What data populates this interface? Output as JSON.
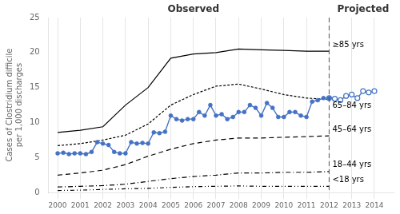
{
  "chart_data": {
    "type": "line",
    "y_label": "Cases of Clostridium difficile\nper 1,000 discharges",
    "xlim": [
      1999.6,
      2014.85
    ],
    "xticks": [
      2000,
      2001,
      2002,
      2003,
      2004,
      2005,
      2006,
      2007,
      2008,
      2009,
      2010,
      2011,
      2012,
      2013,
      2014
    ],
    "ylim": [
      0,
      25
    ],
    "yticks": [
      0,
      5,
      10,
      15,
      20,
      25
    ],
    "grid": "x",
    "annotations": [
      {
        "text": "Observed",
        "x": 2006.0
      },
      {
        "text": "Projected",
        "x": 2013.5
      }
    ],
    "vlines": [
      {
        "x": 2012,
        "color": "#555555",
        "line_style": "dashed"
      }
    ],
    "series": [
      {
        "name": "≥85 yrs",
        "color": "#000000",
        "line_style": "solid",
        "marker": "none",
        "x": [
          2000,
          2001,
          2002,
          2003,
          2004,
          2005,
          2006,
          2007,
          2008,
          2009,
          2010,
          2011,
          2012
        ],
        "values": [
          8.6,
          8.9,
          9.4,
          12.5,
          15.0,
          19.2,
          19.8,
          20.0,
          20.5,
          20.4,
          20.3,
          20.2,
          20.2
        ]
      },
      {
        "name": "65–84 yrs",
        "color": "#000000",
        "line_style": "short_dash",
        "marker": "none",
        "x": [
          2000,
          2001,
          2002,
          2003,
          2004,
          2005,
          2006,
          2007,
          2008,
          2009,
          2010,
          2011,
          2012
        ],
        "values": [
          6.7,
          7.0,
          7.5,
          8.2,
          9.8,
          12.5,
          14.0,
          15.2,
          15.5,
          14.8,
          14.0,
          13.5,
          13.3
        ]
      },
      {
        "name": "45–64 yrs",
        "color": "#000000",
        "line_style": "dashed",
        "marker": "none",
        "x": [
          2000,
          2001,
          2002,
          2003,
          2004,
          2005,
          2006,
          2007,
          2008,
          2009,
          2010,
          2011,
          2012
        ],
        "values": [
          2.5,
          2.8,
          3.2,
          4.0,
          5.2,
          6.2,
          7.0,
          7.5,
          7.8,
          7.8,
          7.9,
          8.0,
          8.1
        ]
      },
      {
        "name": "18–44 yrs",
        "color": "#000000",
        "line_style": "dashdot",
        "marker": "none",
        "x": [
          2000,
          2001,
          2002,
          2003,
          2004,
          2005,
          2006,
          2007,
          2008,
          2009,
          2010,
          2011,
          2012
        ],
        "values": [
          0.8,
          0.9,
          1.0,
          1.2,
          1.6,
          2.0,
          2.3,
          2.5,
          2.8,
          2.8,
          2.9,
          2.9,
          3.0
        ]
      },
      {
        "name": "<18 yrs",
        "color": "#000000",
        "line_style": "dashdotdot",
        "marker": "none",
        "x": [
          2000,
          2001,
          2002,
          2003,
          2004,
          2005,
          2006,
          2007,
          2008,
          2009,
          2010,
          2011,
          2012
        ],
        "values": [
          0.3,
          0.35,
          0.45,
          0.55,
          0.6,
          0.75,
          0.85,
          0.9,
          0.95,
          0.9,
          0.9,
          0.9,
          0.9
        ]
      },
      {
        "color": "#4472C4",
        "line_style": "solid",
        "marker": "circle",
        "x": [
          2000,
          2000.25,
          2000.5,
          2000.75,
          2001,
          2001.25,
          2001.5,
          2001.75,
          2002,
          2002.25,
          2002.5,
          2002.75,
          2003,
          2003.25,
          2003.5,
          2003.75,
          2004,
          2004.25,
          2004.5,
          2004.75,
          2005,
          2005.25,
          2005.5,
          2005.75,
          2006,
          2006.25,
          2006.5,
          2006.75,
          2007,
          2007.25,
          2007.5,
          2007.75,
          2008,
          2008.25,
          2008.5,
          2008.75,
          2009,
          2009.25,
          2009.5,
          2009.75,
          2010,
          2010.25,
          2010.5,
          2010.75,
          2011,
          2011.25,
          2011.5,
          2011.75,
          2012
        ],
        "values": [
          5.6,
          5.7,
          5.5,
          5.6,
          5.6,
          5.5,
          5.8,
          7.2,
          7.0,
          6.8,
          5.8,
          5.6,
          5.6,
          7.2,
          7.0,
          7.1,
          7.0,
          8.6,
          8.5,
          8.7,
          11.0,
          10.5,
          10.3,
          10.5,
          10.5,
          11.5,
          11.0,
          12.5,
          11.0,
          11.2,
          10.5,
          10.8,
          11.5,
          11.5,
          12.5,
          12.1,
          11.0,
          12.8,
          12.1,
          10.8,
          10.8,
          11.5,
          11.5,
          11.0,
          10.8,
          13.0,
          13.2,
          13.5,
          13.5
        ]
      },
      {
        "color": "#4472C4",
        "line_style": "solid",
        "marker": "open_circle",
        "x": [
          2012,
          2012.25,
          2012.5,
          2012.75,
          2013,
          2013.25,
          2013.5,
          2013.75,
          2014
        ],
        "values": [
          13.5,
          13.4,
          13.2,
          13.8,
          14.0,
          13.5,
          14.5,
          14.3,
          14.5
        ]
      }
    ]
  }
}
